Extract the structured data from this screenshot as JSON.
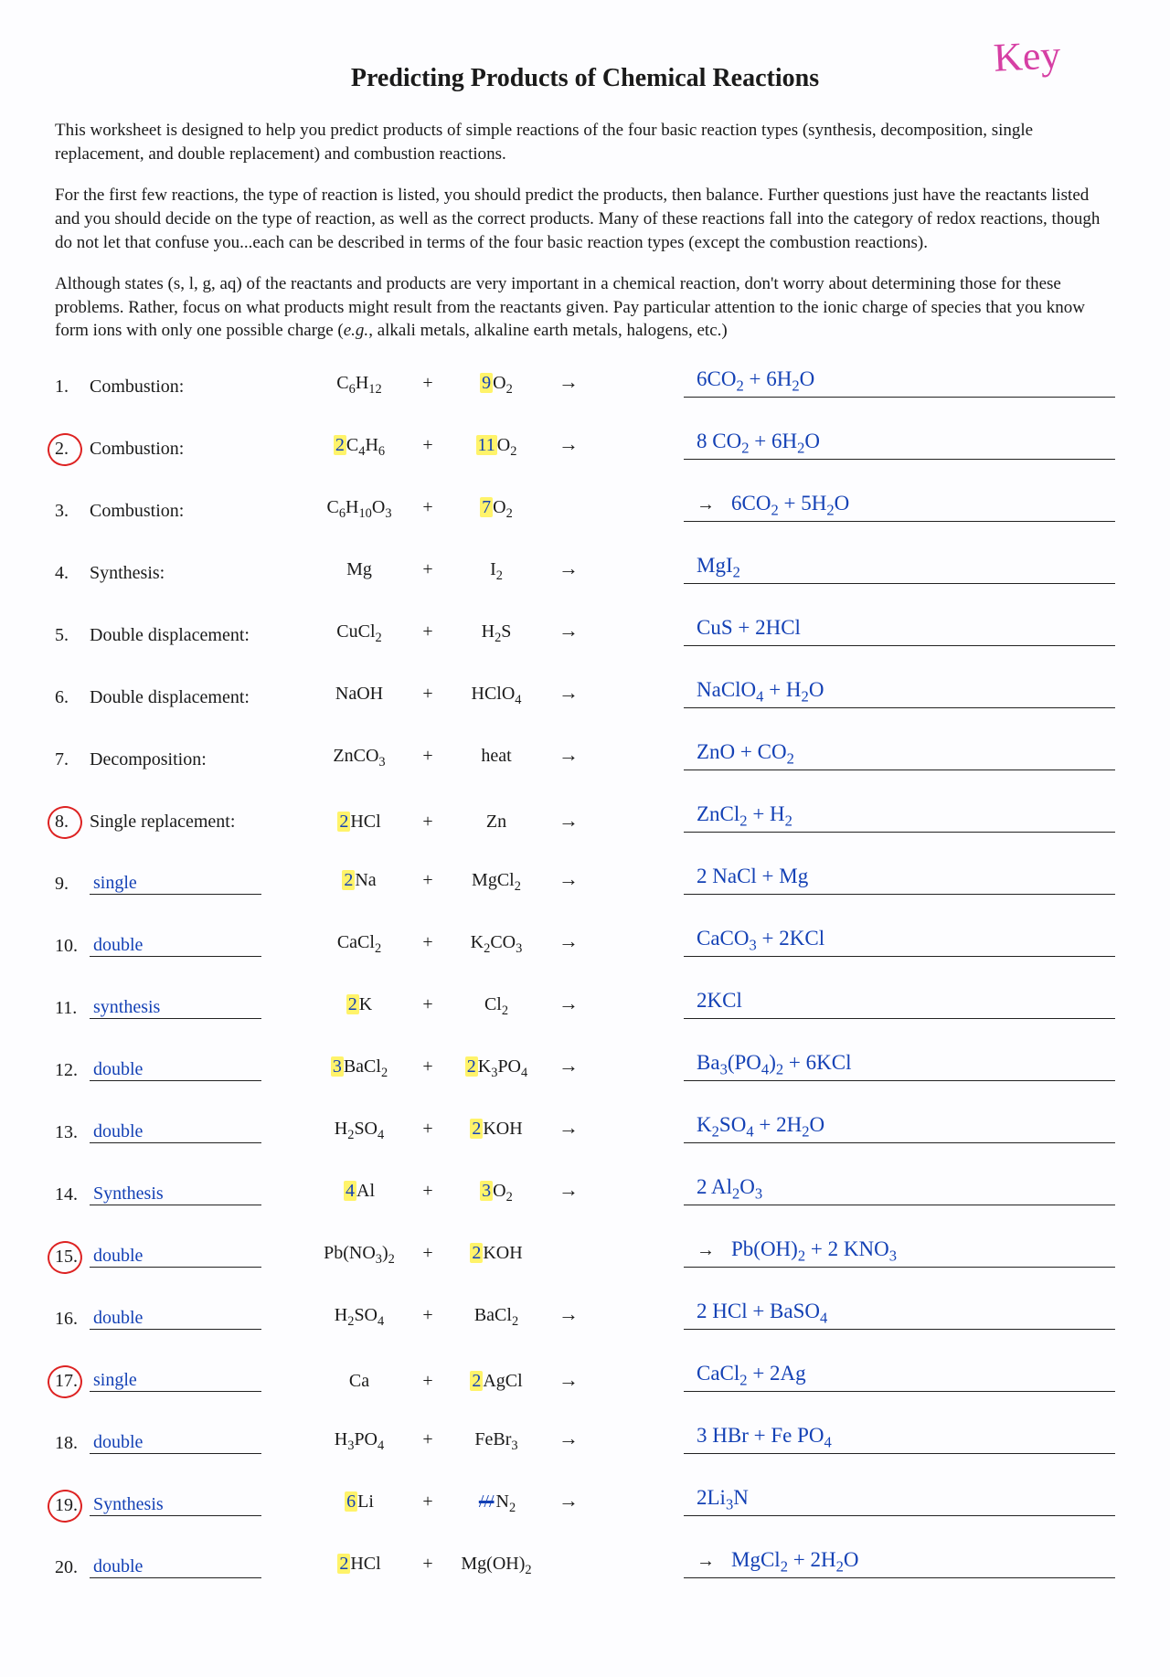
{
  "annotation_key": "Key",
  "title": "Predicting Products of Chemical Reactions",
  "intro": {
    "p1": "This worksheet is designed to help you predict products of simple reactions of the four basic reaction types (synthesis, decomposition, single replacement, and double replacement) and combustion reactions.",
    "p2": "For the first few reactions, the type of reaction is listed, you should predict the products, then balance. Further questions just have the reactants listed and you should decide on the type of reaction, as well as the correct products. Many of these reactions fall into the category of redox reactions, though do not let that confuse you...each can be described in terms of the four basic reaction types (except the combustion reactions).",
    "p3_a": "Although states (s, l, g, aq) of the reactants and products are very important in a chemical reaction, don't worry about determining those for these problems. Rather, focus on what products might result from the reactants given. Pay particular attention to the ionic charge of species that you know form ions with only one possible charge (",
    "p3_eg": "e.g.",
    "p3_b": ", alkali metals, alkaline earth metals, halogens, etc.)"
  },
  "rows": [
    {
      "n": "1.",
      "circled": false,
      "type_printed": "Combustion:",
      "type_hand": "",
      "c1": "",
      "r1": "C<sub>6</sub>H<sub>12</sub>",
      "plus": "+",
      "c2": "9",
      "c2_hl": true,
      "r2": "O<sub>2</sub>",
      "lead_arrow": false,
      "prod": "6CO<sub>2</sub> + 6H<sub>2</sub>O"
    },
    {
      "n": "2.",
      "circled": true,
      "type_printed": "Combustion:",
      "type_hand": "",
      "c1": "2",
      "c1_hl": true,
      "r1": "C<sub>4</sub>H<sub>6</sub>",
      "plus": "+",
      "c2": "11",
      "c2_hl": true,
      "r2": "O<sub>2</sub>",
      "lead_arrow": false,
      "prod": "8 CO<sub>2</sub> + 6H<sub>2</sub>O"
    },
    {
      "n": "3.",
      "circled": false,
      "type_printed": "Combustion:",
      "type_hand": "",
      "c1": "",
      "r1": "C<sub>6</sub>H<sub>10</sub>O<sub>3</sub>",
      "plus": "+",
      "c2": "7",
      "c2_hl": true,
      "r2": "O<sub>2</sub>",
      "lead_arrow": true,
      "prod": "6CO<sub>2</sub> + 5H<sub>2</sub>O"
    },
    {
      "n": "4.",
      "circled": false,
      "type_printed": "Synthesis:",
      "type_hand": "",
      "c1": "",
      "r1": "Mg",
      "plus": "+",
      "c2": "",
      "r2": "I<sub>2</sub>",
      "lead_arrow": false,
      "prod": "MgI<sub>2</sub>"
    },
    {
      "n": "5.",
      "circled": false,
      "type_printed": "Double displacement:",
      "type_hand": "",
      "c1": "",
      "r1": "CuCl<sub>2</sub>",
      "plus": "+",
      "c2": "",
      "r2": "H<sub>2</sub>S",
      "lead_arrow": false,
      "prod": "CuS + 2HCl"
    },
    {
      "n": "6.",
      "circled": false,
      "type_printed": "Double displacement:",
      "type_hand": "",
      "c1": "",
      "r1": "NaOH",
      "plus": "+",
      "c2": "",
      "r2": "HClO<sub>4</sub>",
      "lead_arrow": false,
      "prod": "NaClO<sub>4</sub> + H<sub>2</sub>O"
    },
    {
      "n": "7.",
      "circled": false,
      "type_printed": "Decomposition:",
      "type_hand": "",
      "c1": "",
      "r1": "ZnCO<sub>3</sub>",
      "plus": "+",
      "c2": "",
      "r2": "heat",
      "lead_arrow": false,
      "prod": "ZnO + CO<sub>2</sub>"
    },
    {
      "n": "8.",
      "circled": true,
      "type_printed": "Single replacement:",
      "type_hand": "",
      "c1": "2",
      "c1_hl": true,
      "r1": "HCl",
      "plus": "+",
      "c2": "",
      "r2": "Zn",
      "lead_arrow": false,
      "prod": "ZnCl<sub>2</sub> + H<sub>2</sub>"
    },
    {
      "n": "9.",
      "circled": false,
      "type_printed": "",
      "type_hand": "single",
      "c1": "2",
      "c1_hl": true,
      "r1": "Na",
      "plus": "+",
      "c2": "",
      "r2": "MgCl<sub>2</sub>",
      "lead_arrow": false,
      "prod": "2 NaCl + Mg"
    },
    {
      "n": "10.",
      "circled": false,
      "type_printed": "",
      "type_hand": "double",
      "c1": "",
      "r1": "CaCl<sub>2</sub>",
      "plus": "+",
      "c2": "",
      "r2": "K<sub>2</sub>CO<sub>3</sub>",
      "lead_arrow": false,
      "prod": "CaCO<sub>3</sub> + 2KCl"
    },
    {
      "n": "11.",
      "circled": false,
      "type_printed": "",
      "type_hand": "synthesis",
      "c1": "2",
      "c1_hl": true,
      "r1": "K",
      "plus": "+",
      "c2": "",
      "r2": "Cl<sub>2</sub>",
      "lead_arrow": false,
      "prod": "2KCl"
    },
    {
      "n": "12.",
      "circled": false,
      "type_printed": "",
      "type_hand": "double",
      "c1": "3",
      "c1_hl": true,
      "r1": "BaCl<sub>2</sub>",
      "plus": "+",
      "c2": "2",
      "c2_hl": true,
      "r2": "K<sub>3</sub>PO<sub>4</sub>",
      "lead_arrow": false,
      "prod": "Ba<sub>3</sub>(PO<sub>4</sub>)<sub>2</sub> + 6KCl"
    },
    {
      "n": "13.",
      "circled": false,
      "type_printed": "",
      "type_hand": "double",
      "c1": "",
      "r1": "H<sub>2</sub>SO<sub>4</sub>",
      "plus": "+",
      "c2": "2",
      "c2_hl": true,
      "r2": "KOH",
      "lead_arrow": false,
      "prod": "K<sub>2</sub>SO<sub>4</sub> + 2H<sub>2</sub>O"
    },
    {
      "n": "14.",
      "circled": false,
      "type_printed": "",
      "type_hand": "Synthesis",
      "c1": "4",
      "c1_hl": true,
      "r1": "Al",
      "plus": "+",
      "c2": "3",
      "c2_hl": true,
      "r2": "O<sub>2</sub>",
      "lead_arrow": false,
      "prod": "2 Al<sub>2</sub>O<sub>3</sub>"
    },
    {
      "n": "15.",
      "circled": true,
      "type_printed": "",
      "type_hand": "double",
      "c1": "",
      "r1": "Pb(NO<sub>3</sub>)<sub>2</sub>",
      "plus": "+",
      "c2": "2",
      "c2_hl": true,
      "r2": "KOH",
      "lead_arrow": true,
      "prod": "Pb(OH)<sub>2</sub> + 2 KNO<sub>3</sub>"
    },
    {
      "n": "16.",
      "circled": false,
      "type_printed": "",
      "type_hand": "double",
      "c1": "",
      "r1": "H<sub>2</sub>SO<sub>4</sub>",
      "plus": "+",
      "c2": "",
      "r2": "BaCl<sub>2</sub>",
      "lead_arrow": false,
      "prod": "2 HCl + BaSO<sub>4</sub>"
    },
    {
      "n": "17.",
      "circled": true,
      "type_printed": "",
      "type_hand": "single",
      "c1": "",
      "r1": "Ca",
      "plus": "+",
      "c2": "2",
      "c2_hl": true,
      "r2": "AgCl",
      "lead_arrow": false,
      "prod": "CaCl<sub>2</sub> + 2Ag"
    },
    {
      "n": "18.",
      "circled": false,
      "type_printed": "",
      "type_hand": "double",
      "c1": "",
      "r1": "H<sub>3</sub>PO<sub>4</sub>",
      "plus": "+",
      "c2": "",
      "r2": "FeBr<sub>3</sub>",
      "lead_arrow": false,
      "prod": "3 HBr + Fe PO<sub>4</sub>"
    },
    {
      "n": "19.",
      "circled": true,
      "type_printed": "",
      "type_hand": "Synthesis",
      "c1": "6",
      "c1_hl": true,
      "r1": "Li",
      "plus": "+",
      "c2": "",
      "c2_scribble": true,
      "r2": "N<sub>2</sub>",
      "lead_arrow": false,
      "prod": "2Li<sub>3</sub>N"
    },
    {
      "n": "20.",
      "circled": false,
      "type_printed": "",
      "type_hand": "double",
      "c1": "2",
      "c1_hl": true,
      "r1": "HCl",
      "plus": "+",
      "c2": "",
      "r2": "Mg(OH)<sub>2</sub>",
      "lead_arrow": true,
      "prod": "MgCl<sub>2</sub> + 2H<sub>2</sub>O"
    }
  ]
}
